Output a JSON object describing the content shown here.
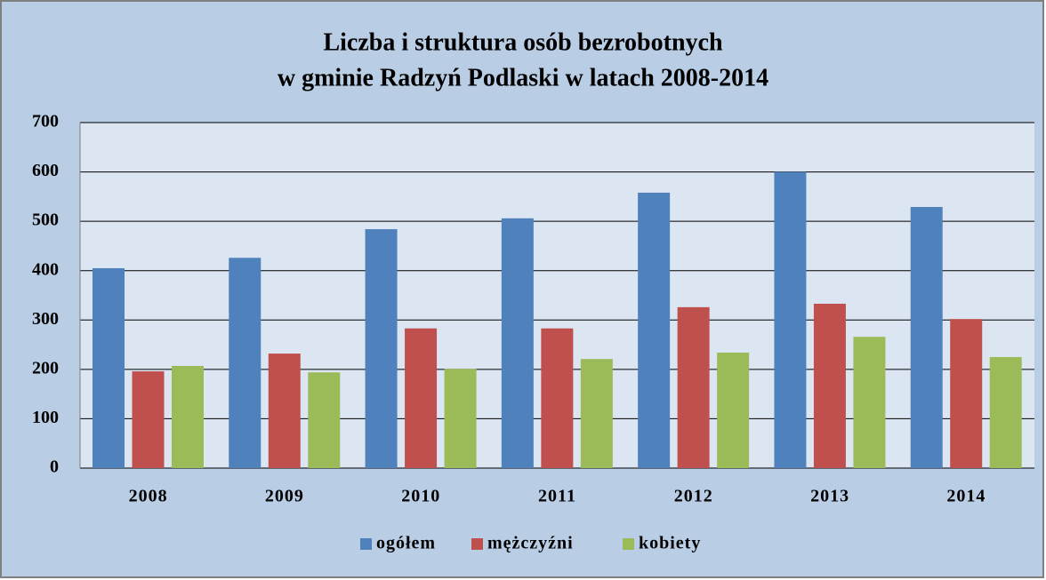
{
  "chart_data": {
    "type": "bar",
    "title": "Liczba i struktura osób bezrobotnych",
    "subtitle": "w gminie Radzyń Podlaski w latach 2008-2014",
    "categories": [
      "2008",
      "2009",
      "2010",
      "2011",
      "2012",
      "2013",
      "2014"
    ],
    "series": [
      {
        "name": "ogółem",
        "color": "#4f81bd",
        "values": [
          405,
          426,
          484,
          506,
          558,
          600,
          529
        ]
      },
      {
        "name": "mężczyźni",
        "color": "#c0504d",
        "values": [
          196,
          232,
          283,
          283,
          326,
          333,
          302
        ]
      },
      {
        "name": "kobiety",
        "color": "#9bbb59",
        "values": [
          207,
          194,
          201,
          221,
          234,
          266,
          225
        ]
      }
    ],
    "ylim": [
      0,
      700
    ],
    "yticks": [
      0,
      100,
      200,
      300,
      400,
      500,
      600,
      700
    ],
    "grid": true,
    "legend": "bottom"
  }
}
